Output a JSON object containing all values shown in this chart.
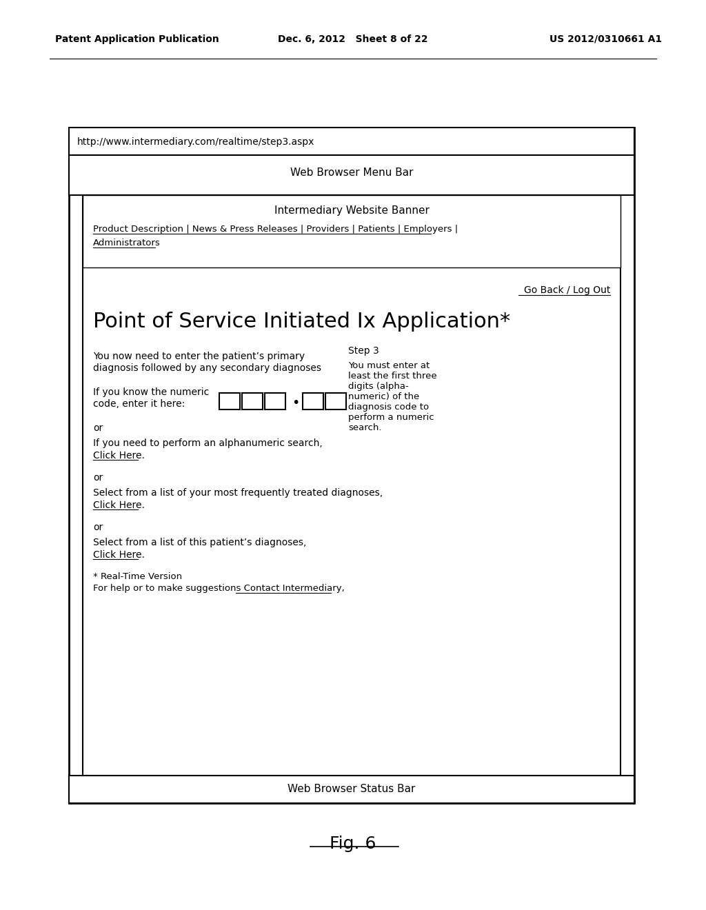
{
  "page_header_left": "Patent Application Publication",
  "page_header_mid": "Dec. 6, 2012   Sheet 8 of 22",
  "page_header_right": "US 2012/0310661 A1",
  "url_bar": "http://www.intermediary.com/realtime/step3.aspx",
  "menu_bar_text": "Web Browser Menu Bar",
  "banner_text": "Intermediary Website Banner",
  "nav_links": "Product Description | News & Press Releases | Providers | Patients | Employers |",
  "nav_links2": "Administrators",
  "go_back": "Go Back / Log Out",
  "main_title": "Point of Service Initiated Ix Application*",
  "intro_text1": "You now need to enter the patient’s primary",
  "intro_text2": "diagnosis followed by any secondary diagnoses",
  "if_know_label": "If you know the numeric",
  "if_know_label2": "code, enter it here:",
  "or1": "or",
  "alphanumeric_text": "If you need to perform an alphanumeric search,",
  "click_here1": "Click Here.",
  "or2": "or",
  "frequent_text": "Select from a list of your most frequently treated diagnoses,",
  "click_here2": "Click Here.",
  "or3": "or",
  "patient_diag_text": "Select from a list of this patient’s diagnoses,",
  "click_here3": "Click Here.",
  "footer_note1": "* Real-Time Version",
  "footer_note2": "For help or to make suggestions Contact Intermediary,",
  "step_label": "Step 3",
  "step_desc1": "You must enter at",
  "step_desc2": "least the first three",
  "step_desc3": "digits (alpha-",
  "step_desc4": "numeric) of the",
  "step_desc5": "diagnosis code to",
  "step_desc6": "perform a numeric",
  "step_desc7": "search.",
  "status_bar": "Web Browser Status Bar",
  "fig_label": "Fig. 6",
  "white": "#ffffff",
  "black": "#000000"
}
